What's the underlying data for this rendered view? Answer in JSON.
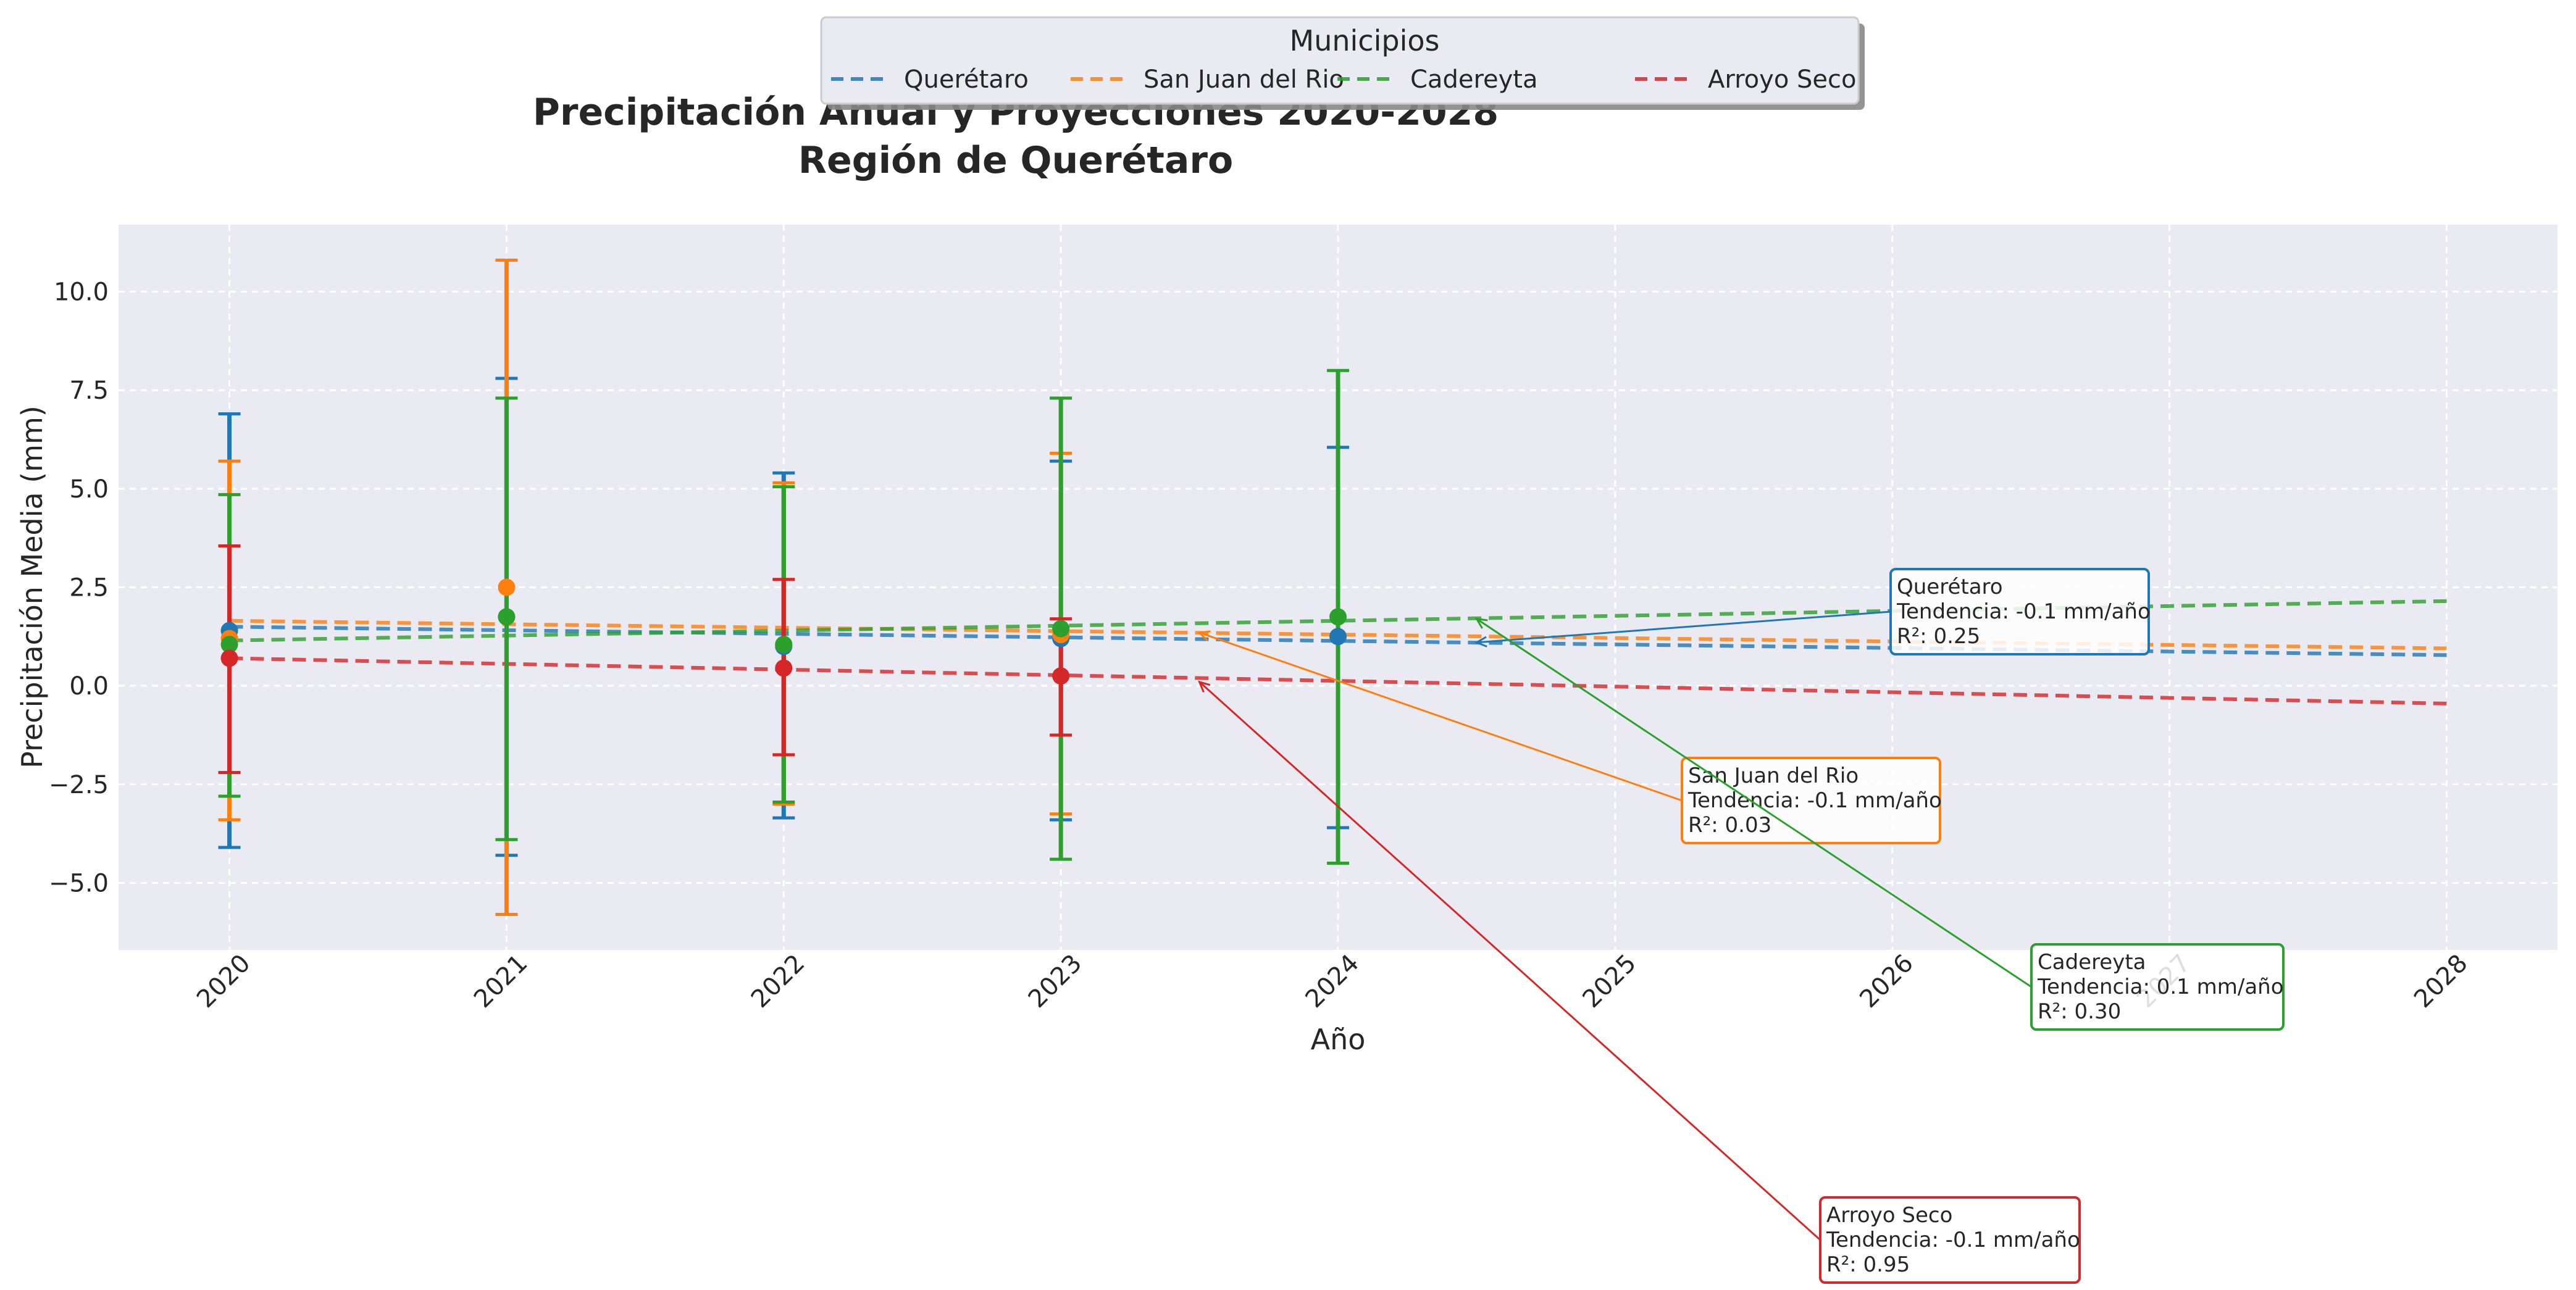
{
  "chart_data": {
    "type": "line",
    "title": "Precipitación Anual y Proyecciones 2020-2028",
    "subtitle": "Región de Querétaro",
    "xlabel": "Año",
    "ylabel": "Precipitación Media (mm)",
    "xlim": [
      2019.6,
      2028.4
    ],
    "ylim": [
      -6.7,
      11.7
    ],
    "x_ticks": [
      2020,
      2021,
      2022,
      2023,
      2024,
      2025,
      2026,
      2027,
      2028
    ],
    "y_ticks": [
      -5.0,
      -2.5,
      0.0,
      2.5,
      5.0,
      7.5,
      10.0
    ],
    "y_tick_labels": [
      "−5.0",
      "−2.5",
      "0.0",
      "2.5",
      "5.0",
      "7.5",
      "10.0"
    ],
    "grid": true,
    "legend": {
      "title": "Municipios",
      "placement": "top-center",
      "entries": [
        "Querétaro",
        "San Juan del Rio",
        "Cadereyta",
        "Arroyo Seco"
      ]
    },
    "series": [
      {
        "name": "Querétaro",
        "color": "#1f77b4",
        "observed": {
          "x": [
            2020,
            2021,
            2022,
            2023,
            2024
          ],
          "y": [
            1.4,
            1.75,
            1.0,
            1.2,
            1.25
          ],
          "err_low": [
            -4.1,
            -4.3,
            -3.35,
            -3.4,
            -3.6
          ],
          "err_high": [
            6.9,
            7.8,
            5.4,
            5.7,
            6.05
          ]
        },
        "trend": {
          "x": [
            2020,
            2028
          ],
          "y": [
            1.5,
            0.78
          ]
        },
        "annotation": {
          "text": [
            "Querétaro",
            "Tendencia: -0.1 mm/año",
            "R²: 0.25"
          ],
          "point": [
            2024.5,
            1.1
          ]
        }
      },
      {
        "name": "San Juan del Rio",
        "color": "#ff7f0e",
        "observed": {
          "x": [
            2020,
            2021,
            2022,
            2023
          ],
          "y": [
            1.2,
            2.5,
            1.05,
            1.3
          ],
          "err_low": [
            -3.4,
            -5.8,
            -3.0,
            -3.25
          ],
          "err_high": [
            5.7,
            10.8,
            5.15,
            5.9
          ]
        },
        "trend": {
          "x": [
            2020,
            2028
          ],
          "y": [
            1.65,
            0.95
          ]
        },
        "annotation": {
          "text": [
            "San Juan del Rio",
            "Tendencia: -0.1 mm/año",
            "R²: 0.03"
          ],
          "point": [
            2023.5,
            1.35
          ]
        }
      },
      {
        "name": "Cadereyta",
        "color": "#2ca02c",
        "observed": {
          "x": [
            2020,
            2021,
            2022,
            2023,
            2024
          ],
          "y": [
            1.05,
            1.75,
            1.05,
            1.45,
            1.75
          ],
          "err_low": [
            -2.8,
            -3.9,
            -2.95,
            -4.4,
            -4.5
          ],
          "err_high": [
            4.85,
            7.3,
            5.05,
            7.3,
            8.0
          ]
        },
        "trend": {
          "x": [
            2020,
            2028
          ],
          "y": [
            1.15,
            2.15
          ]
        },
        "annotation": {
          "text": [
            "Cadereyta",
            "Tendencia: 0.1 mm/año",
            "R²: 0.30"
          ],
          "point": [
            2024.5,
            1.7
          ]
        }
      },
      {
        "name": "Arroyo Seco",
        "color": "#d62728",
        "observed": {
          "x": [
            2020,
            2022,
            2023
          ],
          "y": [
            0.7,
            0.45,
            0.25
          ],
          "err_low": [
            -2.2,
            -1.75,
            -1.25
          ],
          "err_high": [
            3.55,
            2.7,
            1.7
          ]
        },
        "trend": {
          "x": [
            2020,
            2028
          ],
          "y": [
            0.7,
            -0.45
          ]
        },
        "annotation": {
          "text": [
            "Arroyo Seco",
            "Tendencia: -0.1 mm/año",
            "R²: 0.95"
          ],
          "point": [
            2023.5,
            0.1
          ]
        }
      }
    ]
  }
}
